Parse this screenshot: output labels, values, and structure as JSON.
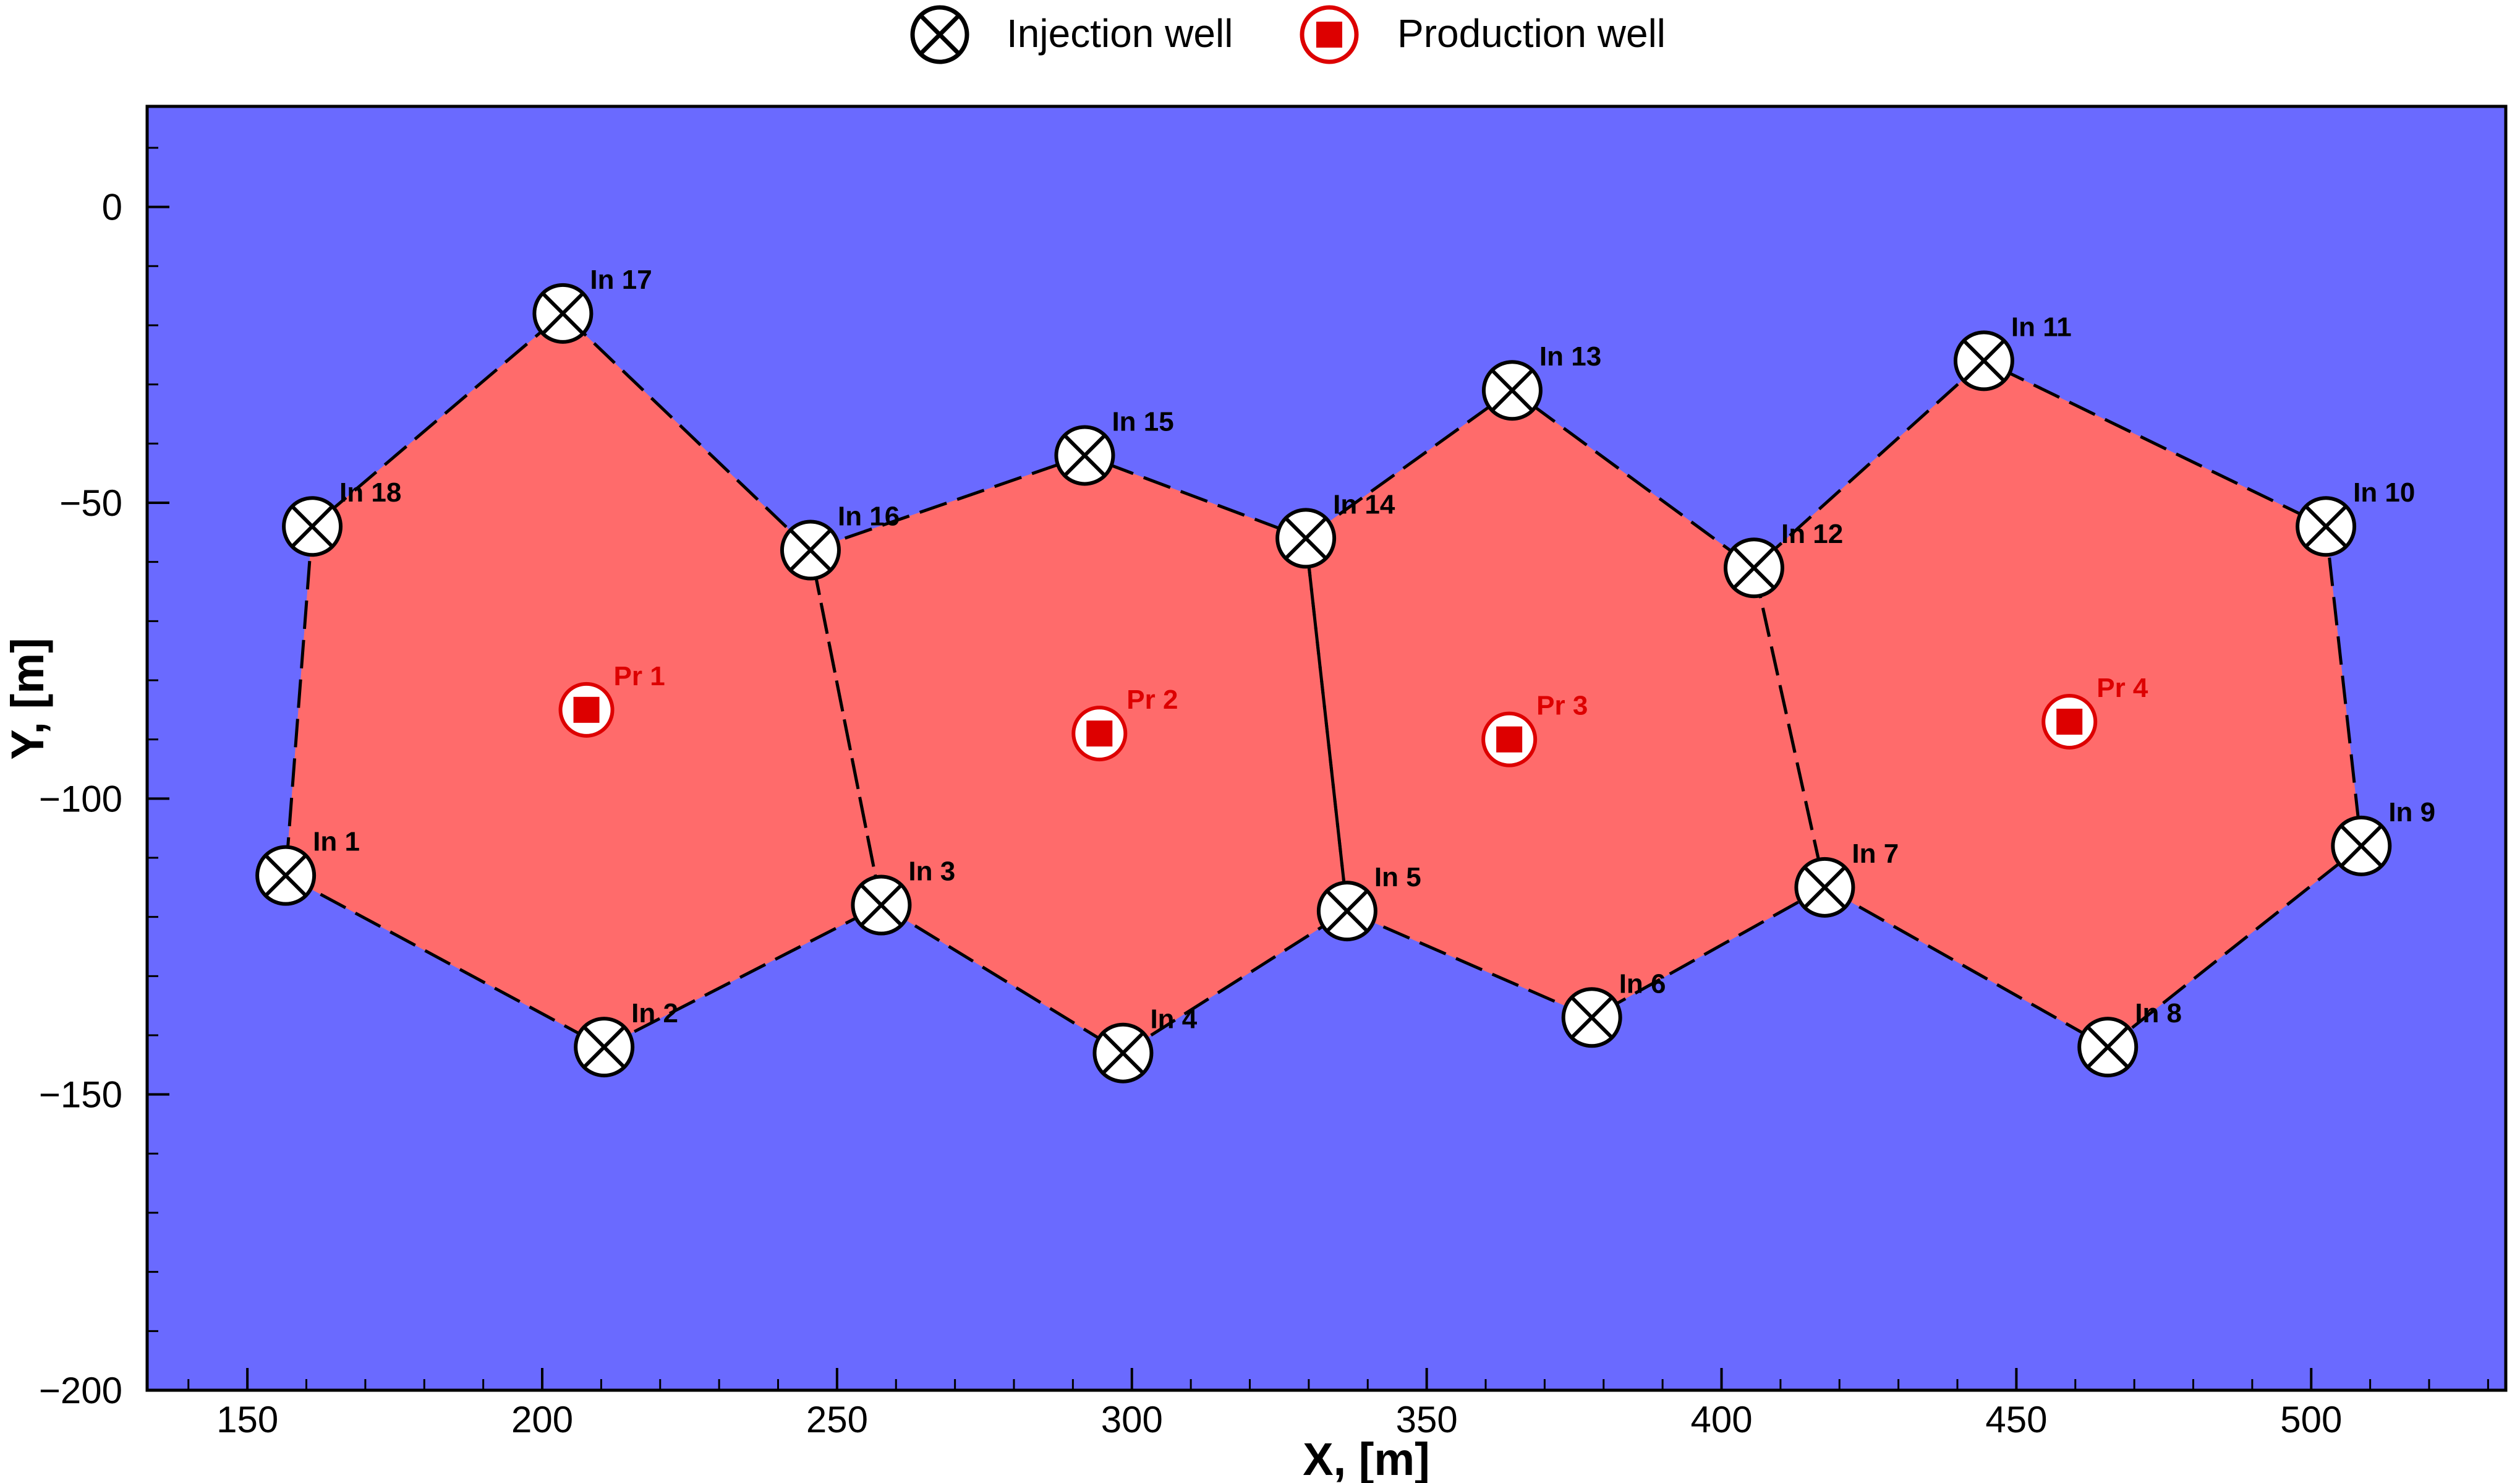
{
  "chart_data": {
    "type": "scatter",
    "title": "",
    "xlabel": "X, [m]",
    "ylabel": "Y, [m]",
    "xlim": [
      133,
      533
    ],
    "ylim": [
      -200,
      17
    ],
    "x_ticks": [
      "150",
      "200",
      "250",
      "300",
      "350",
      "400",
      "450",
      "500"
    ],
    "y_ticks": [
      "0",
      "−50",
      "−100",
      "−150",
      "−200"
    ],
    "grid": false,
    "legend": {
      "placement": "top-center",
      "entries": [
        "Injection well",
        "Production well"
      ]
    },
    "colors": {
      "background_field": "#6a6aff",
      "swept_region": "#ff6b6b",
      "production_marker": "#dd0000",
      "boundary_line": "#000000"
    },
    "injection_wells": [
      {
        "label": "In 1",
        "x": 156.5,
        "y": -113
      },
      {
        "label": "In 2",
        "x": 210.5,
        "y": -142
      },
      {
        "label": "In 3",
        "x": 257.5,
        "y": -118
      },
      {
        "label": "In 4",
        "x": 298.5,
        "y": -143
      },
      {
        "label": "In 5",
        "x": 336.5,
        "y": -119
      },
      {
        "label": "In 6",
        "x": 378,
        "y": -137
      },
      {
        "label": "In 7",
        "x": 417.5,
        "y": -115
      },
      {
        "label": "In 8",
        "x": 465.5,
        "y": -142
      },
      {
        "label": "In 9",
        "x": 508.5,
        "y": -108
      },
      {
        "label": "In 10",
        "x": 502.5,
        "y": -54
      },
      {
        "label": "In 11",
        "x": 444.5,
        "y": -26
      },
      {
        "label": "In 12",
        "x": 405.5,
        "y": -61
      },
      {
        "label": "In 13",
        "x": 364.5,
        "y": -31
      },
      {
        "label": "In 14",
        "x": 329.5,
        "y": -56
      },
      {
        "label": "In 15",
        "x": 292,
        "y": -42
      },
      {
        "label": "In 16",
        "x": 245.5,
        "y": -58
      },
      {
        "label": "In 17",
        "x": 203.5,
        "y": -18
      },
      {
        "label": "In 18",
        "x": 161,
        "y": -54
      }
    ],
    "production_wells": [
      {
        "label": "Pr 1",
        "x": 207.5,
        "y": -85
      },
      {
        "label": "Pr 2",
        "x": 294.5,
        "y": -89
      },
      {
        "label": "Pr 3",
        "x": 364,
        "y": -90
      },
      {
        "label": "Pr 4",
        "x": 459,
        "y": -87
      }
    ],
    "patterns": [
      {
        "producer": "Pr 1",
        "boundary": [
          "In 1",
          "In 2",
          "In 3",
          "In 16",
          "In 17",
          "In 18"
        ]
      },
      {
        "producer": "Pr 2",
        "boundary": [
          "In 3",
          "In 4",
          "In 5",
          "In 14",
          "In 15",
          "In 16"
        ]
      },
      {
        "producer": "Pr 3",
        "boundary": [
          "In 5",
          "In 6",
          "In 7",
          "In 12",
          "In 13",
          "In 14"
        ]
      },
      {
        "producer": "Pr 4",
        "boundary": [
          "In 7",
          "In 8",
          "In 9",
          "In 10",
          "In 11",
          "In 12"
        ]
      }
    ]
  }
}
